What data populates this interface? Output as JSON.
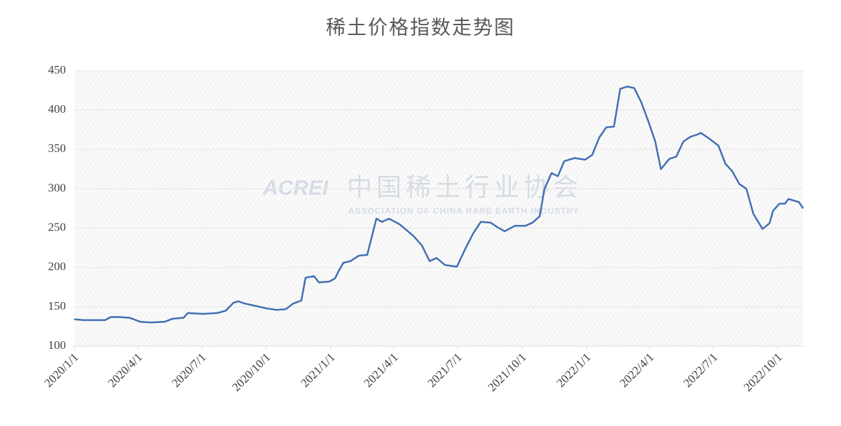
{
  "chart_data": {
    "type": "line",
    "title": "稀土价格指数走势图",
    "watermark": {
      "logo": "ACREI",
      "name": "中国稀土行业协会",
      "subtitle": "ASSOCIATION OF CHINA RARE EARTH INDUSTRY"
    },
    "color": "#4170b4",
    "x": [
      "2020/1/1",
      "2020/1/15",
      "2020/2/14",
      "2020/2/22",
      "2020/3/5",
      "2020/3/20",
      "2020/4/4",
      "2020/4/19",
      "2020/5/9",
      "2020/5/21",
      "2020/6/5",
      "2020/6/11",
      "2020/7/3",
      "2020/7/23",
      "2020/8/4",
      "2020/8/15",
      "2020/8/22",
      "2020/9/1",
      "2020/9/16",
      "2020/10/1",
      "2020/10/16",
      "2020/10/29",
      "2020/11/8",
      "2020/11/20",
      "2020/11/26",
      "2020/12/8",
      "2020/12/15",
      "2020/12/30",
      "2021/1/7",
      "2021/1/12",
      "2021/1/19",
      "2021/1/29",
      "2021/2/10",
      "2021/2/22",
      "2021/3/7",
      "2021/3/15",
      "2021/3/25",
      "2021/4/9",
      "2021/4/29",
      "2021/5/11",
      "2021/5/22",
      "2021/6/1",
      "2021/6/13",
      "2021/6/30",
      "2021/7/11",
      "2021/7/23",
      "2021/8/3",
      "2021/8/17",
      "2021/8/27",
      "2021/9/6",
      "2021/9/21",
      "2021/10/6",
      "2021/10/16",
      "2021/10/26",
      "2021/11/2",
      "2021/11/12",
      "2021/11/21",
      "2021/11/30",
      "2021/12/15",
      "2021/12/30",
      "2022/1/9",
      "2022/1/19",
      "2022/1/29",
      "2022/2/9",
      "2022/2/18",
      "2022/2/28",
      "2022/3/10",
      "2022/3/20",
      "2022/3/30",
      "2022/4/9",
      "2022/4/17",
      "2022/4/29",
      "2022/5/9",
      "2022/5/19",
      "2022/5/29",
      "2022/6/8",
      "2022/6/13",
      "2022/6/23",
      "2022/7/8",
      "2022/7/18",
      "2022/7/28",
      "2022/8/7",
      "2022/8/17",
      "2022/8/27",
      "2022/9/9",
      "2022/9/19",
      "2022/9/24",
      "2022/10/3",
      "2022/10/11",
      "2022/10/16",
      "2022/10/24",
      "2022/10/31",
      "2022/11/6"
    ],
    "values": [
      134,
      133,
      133,
      137,
      137,
      136,
      131,
      130,
      131,
      135,
      136,
      142,
      141,
      142,
      145,
      155,
      157,
      154,
      151,
      148,
      146,
      147,
      154,
      158,
      187,
      189,
      181,
      182,
      186,
      195,
      206,
      208,
      215,
      216,
      262,
      258,
      262,
      255,
      240,
      228,
      208,
      212,
      203,
      201,
      222,
      243,
      258,
      257,
      251,
      246,
      253,
      253,
      257,
      265,
      300,
      320,
      316,
      335,
      339,
      337,
      343,
      365,
      378,
      379,
      427,
      430,
      428,
      410,
      386,
      360,
      325,
      338,
      341,
      360,
      366,
      369,
      371,
      365,
      355,
      332,
      322,
      306,
      300,
      268,
      249,
      256,
      272,
      281,
      281,
      287,
      285,
      283,
      275
    ],
    "xlim": [
      "2020/1/1",
      "2022/11/6"
    ],
    "xticks": [
      "2020/1/1",
      "2020/4/1",
      "2020/7/1",
      "2020/10/1",
      "2021/1/1",
      "2021/4/1",
      "2021/7/1",
      "2021/10/1",
      "2022/1/1",
      "2022/4/1",
      "2022/7/1",
      "2022/10/1"
    ],
    "ylim": [
      100,
      450
    ],
    "yticks": [
      100,
      150,
      200,
      250,
      300,
      350,
      400,
      450
    ],
    "grid": true
  }
}
